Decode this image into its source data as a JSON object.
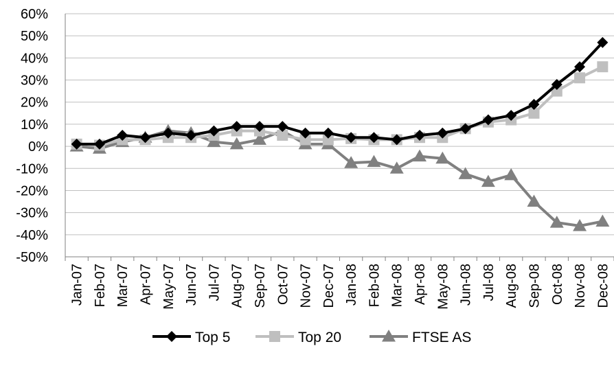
{
  "chart_data": {
    "type": "line",
    "title": "",
    "xlabel": "",
    "ylabel": "",
    "categories": [
      "Jan-07",
      "Feb-07",
      "Mar-07",
      "Apr-07",
      "May-07",
      "Jun-07",
      "Jul-07",
      "Aug-07",
      "Sep-07",
      "Oct-07",
      "Nov-07",
      "Dec-07",
      "Jan-08",
      "Feb-08",
      "Mar-08",
      "Apr-08",
      "May-08",
      "Jun-08",
      "Jul-08",
      "Aug-08",
      "Sep-08",
      "Oct-08",
      "Nov-08",
      "Dec-08"
    ],
    "ylim": [
      -50,
      60
    ],
    "yticks": [
      60,
      50,
      40,
      30,
      20,
      10,
      0,
      -10,
      -20,
      -30,
      -40,
      -50
    ],
    "ytick_labels": [
      "60%",
      "50%",
      "40%",
      "30%",
      "20%",
      "10%",
      "0%",
      "-10%",
      "-20%",
      "-30%",
      "-40%",
      "-50%"
    ],
    "grid": "horizontal",
    "legend_position": "bottom",
    "series": [
      {
        "name": "Top 5",
        "marker": "diamond",
        "color": "#000000",
        "values": [
          1,
          1,
          5,
          4,
          6,
          5,
          7,
          9,
          9,
          9,
          6,
          6,
          4,
          4,
          3,
          5,
          6,
          8,
          12,
          14,
          19,
          28,
          36,
          47
        ]
      },
      {
        "name": "Top 20",
        "marker": "square",
        "color": "#bfbfbf",
        "values": [
          1,
          0.5,
          3,
          3,
          4,
          4,
          5,
          7,
          7,
          5,
          3,
          3,
          3.5,
          3,
          3,
          4,
          4,
          8,
          11,
          12,
          15,
          25,
          31,
          36
        ]
      },
      {
        "name": "FTSE AS",
        "marker": "triangle",
        "color": "#808080",
        "values": [
          0,
          -1,
          2,
          4,
          7,
          6,
          2,
          1,
          3,
          7,
          1,
          1,
          -7.5,
          -7,
          -10,
          -4.5,
          -5.5,
          -12.5,
          -16,
          -13,
          -25,
          -34.5,
          -36,
          -34
        ]
      }
    ]
  }
}
